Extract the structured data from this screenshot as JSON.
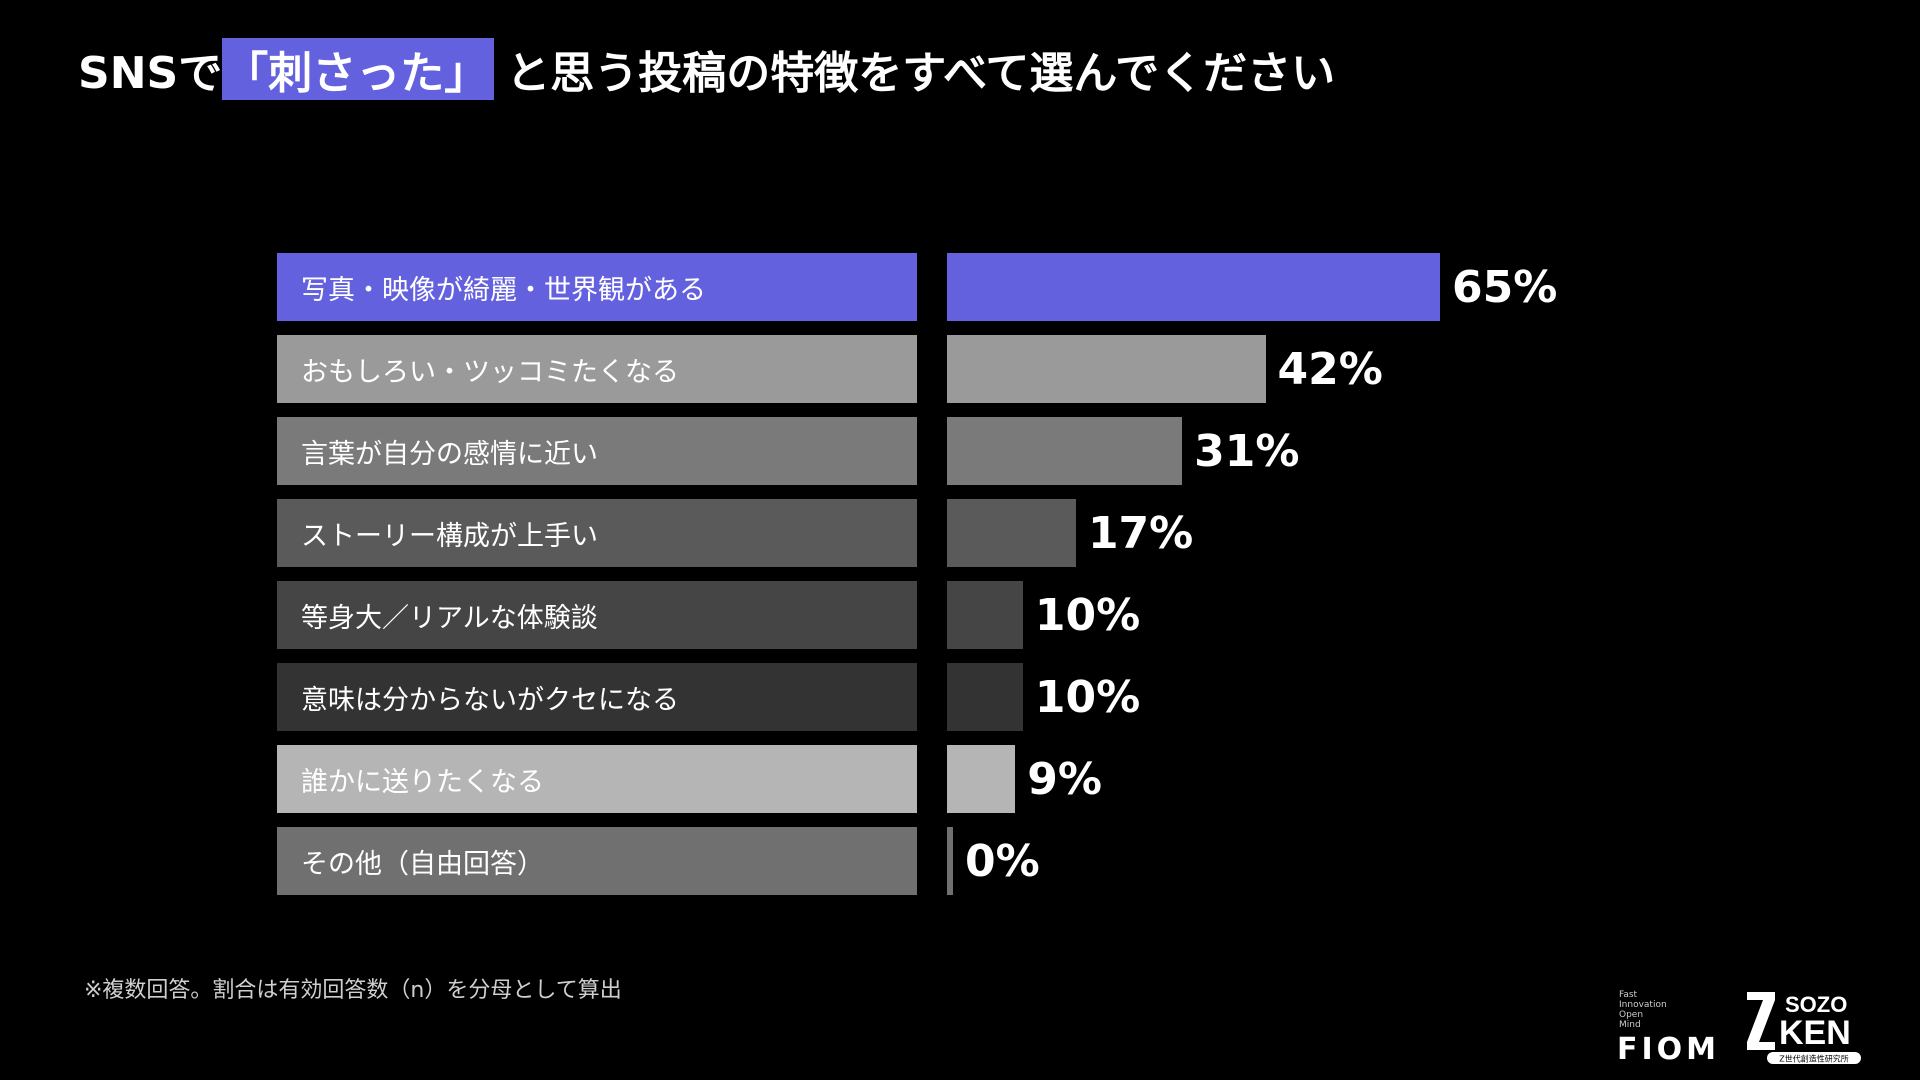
{
  "title": {
    "prefix": "SNSで",
    "highlight": "「刺さった」",
    "suffix": "と思う投稿の特徴をすべて選んでください"
  },
  "colors": {
    "background": "#000000",
    "accent": "#6461df"
  },
  "chart_data": {
    "type": "bar",
    "orientation": "horizontal",
    "categories": [
      "写真・映像が綺麗・世界観がある",
      "おもしろい・ツッコミたくなる",
      "言葉が自分の感情に近い",
      "ストーリー構成が上手い",
      "等身大／リアルな体験談",
      "意味は分からないがクセになる",
      "誰かに送りたくなる",
      "その他（自由回答）"
    ],
    "values": [
      65,
      42,
      31,
      17,
      10,
      10,
      9,
      0
    ],
    "value_labels": [
      "65%",
      "42%",
      "31%",
      "17%",
      "10%",
      "10%",
      "9%",
      "0%"
    ],
    "unit": "%",
    "bar_colors": [
      "#6461df",
      "#9a9a9a",
      "#7a7a7a",
      "#5a5a5a",
      "#454545",
      "#333333",
      "#b5b5b5",
      "#707070"
    ],
    "label_box_colors": [
      "#6461df",
      "#9a9a9a",
      "#7a7a7a",
      "#5a5a5a",
      "#454545",
      "#333333",
      "#b5b5b5",
      "#707070"
    ],
    "xlim": [
      0,
      100
    ],
    "grid": false,
    "legend": "none"
  },
  "footnote": "※複数回答。割合は有効回答数（n）を分母として算出",
  "logos": {
    "fiom_small": [
      "Fast",
      "Innovation",
      "Open",
      "Mind"
    ],
    "fiom_big": "FIOM",
    "sozo_line1": "SOZO",
    "sozo_line2": "KEN",
    "sozo_sub": "Z世代創造性研究所"
  }
}
